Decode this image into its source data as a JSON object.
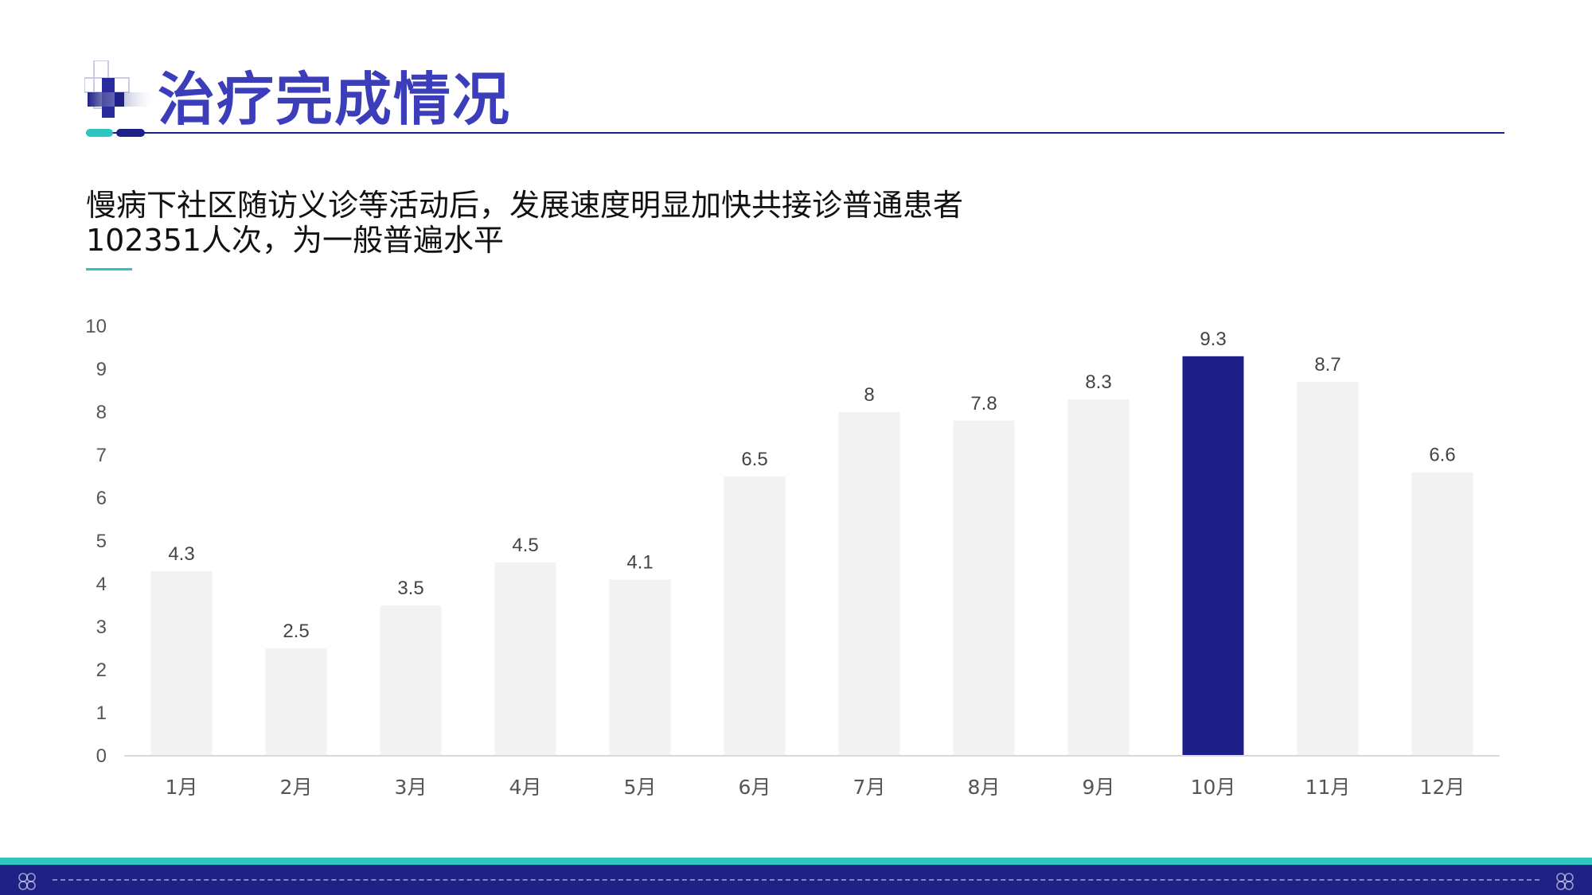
{
  "header": {
    "title": "治疗完成情况"
  },
  "subtitle": {
    "line1": "慢病下社区随访义诊等活动后，发展速度明显加快共接诊普通患者",
    "line2": "102351人次，为一般普遍水平"
  },
  "colors": {
    "accent_navy": "#1e2287",
    "title_blue": "#3b3dbb",
    "accent_teal": "#2ec4c0",
    "bar_default": "#f2f2f2",
    "bar_highlight": "#1f1f8a"
  },
  "chart_data": {
    "type": "bar",
    "categories": [
      "1月",
      "2月",
      "3月",
      "4月",
      "5月",
      "6月",
      "7月",
      "8月",
      "9月",
      "10月",
      "11月",
      "12月"
    ],
    "values": [
      4.3,
      2.5,
      3.5,
      4.5,
      4.1,
      6.5,
      8,
      7.8,
      8.3,
      9.3,
      8.7,
      6.6
    ],
    "value_labels": [
      "4.3",
      "2.5",
      "3.5",
      "4.5",
      "4.1",
      "6.5",
      "8",
      "7.8",
      "8.3",
      "9.3",
      "8.7",
      "6.6"
    ],
    "highlight_index": 9,
    "ylim": [
      0,
      10
    ],
    "yticks": [
      "0",
      "1",
      "2",
      "3",
      "4",
      "5",
      "6",
      "7",
      "8",
      "9",
      "10"
    ],
    "grid": false,
    "legend": "none"
  }
}
